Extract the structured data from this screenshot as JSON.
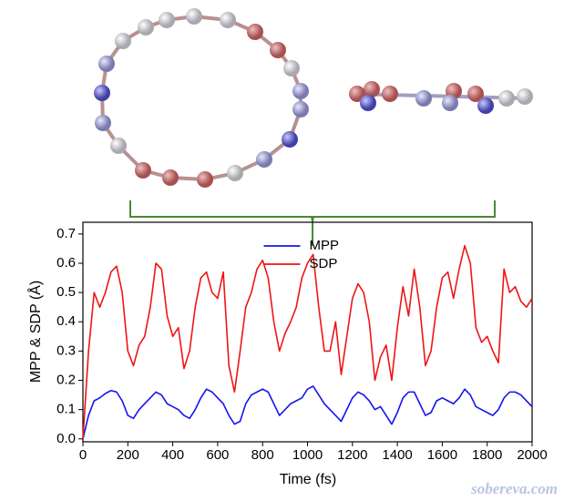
{
  "chart_data": {
    "type": "line",
    "x_label": "Time (fs)",
    "y_label": "MPP & SDP (Å)",
    "watermark": "sobereva.com",
    "legend": "upper center",
    "xlim": [
      0,
      2000
    ],
    "ylim": [
      -0.01,
      0.74
    ],
    "xticks": [
      0,
      200,
      400,
      600,
      800,
      1000,
      1200,
      1400,
      1600,
      1800,
      2000
    ],
    "yticks": [
      {
        "value": 0,
        "label": "0.0"
      },
      0.1,
      0.2,
      0.3,
      0.4,
      0.5,
      0.6,
      0.7
    ],
    "x": [
      0,
      25,
      50,
      75,
      100,
      125,
      150,
      175,
      200,
      225,
      250,
      275,
      300,
      325,
      350,
      375,
      400,
      425,
      450,
      475,
      500,
      525,
      550,
      575,
      600,
      625,
      650,
      675,
      700,
      725,
      750,
      775,
      800,
      825,
      850,
      875,
      900,
      925,
      950,
      975,
      1000,
      1025,
      1050,
      1075,
      1100,
      1125,
      1150,
      1175,
      1200,
      1225,
      1250,
      1275,
      1300,
      1325,
      1350,
      1375,
      1400,
      1425,
      1450,
      1475,
      1500,
      1525,
      1550,
      1575,
      1600,
      1625,
      1650,
      1675,
      1700,
      1725,
      1750,
      1775,
      1800,
      1825,
      1850,
      1875,
      1900,
      1925,
      1950,
      1975,
      2000
    ],
    "series": [
      {
        "name": "MPP",
        "color": "#1515ee",
        "values": [
          0,
          0.08,
          0.13,
          0.14,
          0.155,
          0.165,
          0.16,
          0.13,
          0.08,
          0.07,
          0.1,
          0.12,
          0.14,
          0.16,
          0.15,
          0.12,
          0.11,
          0.1,
          0.08,
          0.07,
          0.1,
          0.14,
          0.17,
          0.16,
          0.14,
          0.12,
          0.08,
          0.05,
          0.06,
          0.12,
          0.15,
          0.16,
          0.17,
          0.16,
          0.12,
          0.08,
          0.1,
          0.12,
          0.13,
          0.14,
          0.17,
          0.18,
          0.15,
          0.12,
          0.1,
          0.08,
          0.06,
          0.1,
          0.14,
          0.16,
          0.15,
          0.13,
          0.1,
          0.11,
          0.08,
          0.05,
          0.09,
          0.14,
          0.16,
          0.16,
          0.12,
          0.08,
          0.09,
          0.13,
          0.14,
          0.13,
          0.12,
          0.14,
          0.17,
          0.15,
          0.11,
          0.1,
          0.09,
          0.08,
          0.1,
          0.14,
          0.16,
          0.16,
          0.15,
          0.13,
          0.11
        ]
      },
      {
        "name": "SDP",
        "color": "#ee1515",
        "values": [
          0,
          0.3,
          0.5,
          0.45,
          0.5,
          0.57,
          0.59,
          0.5,
          0.3,
          0.25,
          0.32,
          0.35,
          0.45,
          0.6,
          0.58,
          0.42,
          0.35,
          0.38,
          0.24,
          0.3,
          0.45,
          0.55,
          0.57,
          0.5,
          0.48,
          0.57,
          0.25,
          0.16,
          0.3,
          0.45,
          0.5,
          0.58,
          0.61,
          0.55,
          0.4,
          0.3,
          0.36,
          0.4,
          0.45,
          0.55,
          0.6,
          0.63,
          0.45,
          0.3,
          0.3,
          0.4,
          0.22,
          0.35,
          0.48,
          0.53,
          0.5,
          0.4,
          0.2,
          0.28,
          0.32,
          0.2,
          0.38,
          0.52,
          0.42,
          0.58,
          0.45,
          0.25,
          0.3,
          0.45,
          0.55,
          0.57,
          0.48,
          0.58,
          0.66,
          0.6,
          0.38,
          0.33,
          0.35,
          0.3,
          0.26,
          0.58,
          0.5,
          0.52,
          0.47,
          0.45,
          0.48
        ]
      }
    ]
  }
}
